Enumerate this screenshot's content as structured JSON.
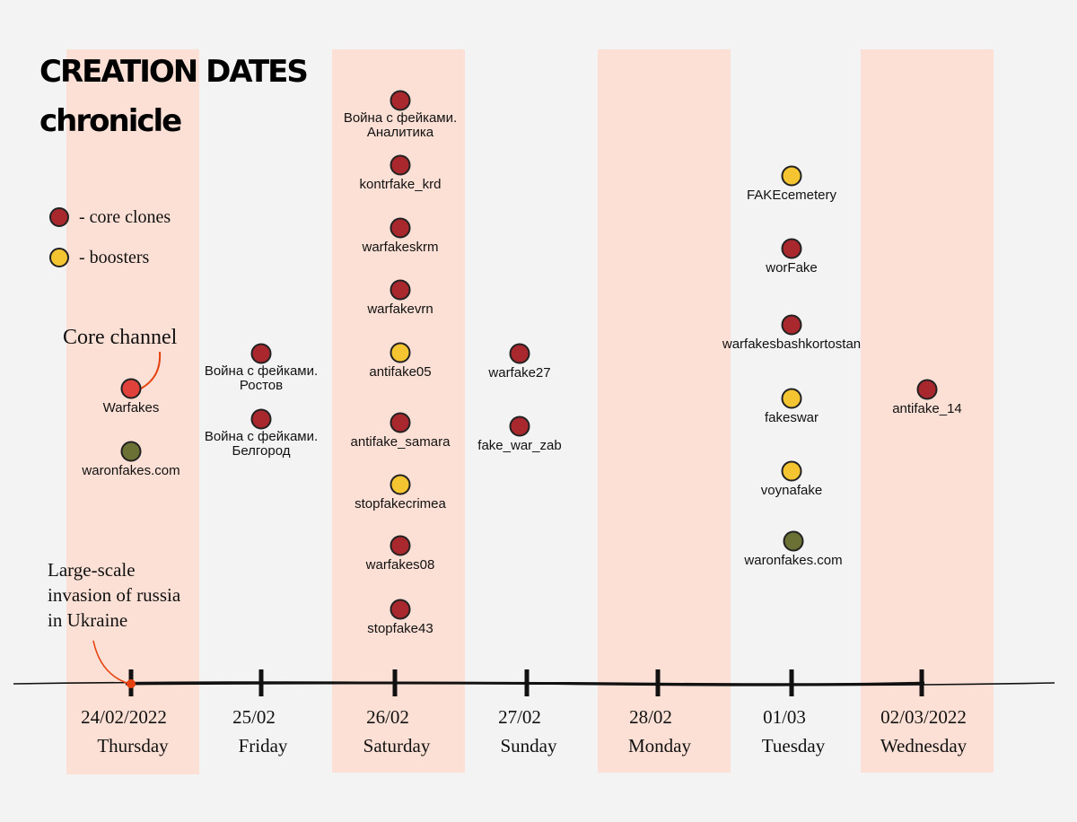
{
  "title": {
    "line1": "CREATION DATES",
    "line2": "chronicle"
  },
  "legend": {
    "core_label": "- core clones",
    "booster_label": "- boosters"
  },
  "colors": {
    "core": "#a8282d",
    "booster": "#f5c431",
    "origin": "#e0413a",
    "waronfakes": "#6b7034",
    "band": "#fde0d5",
    "annotation": "#e5420f"
  },
  "annotations": {
    "core_channel": "Core channel",
    "invasion_line1": "Large-scale",
    "invasion_line2": "invasion of russia",
    "invasion_line3": "in Ukraine"
  },
  "days": [
    {
      "date": "24/02/2022",
      "weekday": "Thursday",
      "highlighted": true
    },
    {
      "date": "25/02",
      "weekday": "Friday",
      "highlighted": false
    },
    {
      "date": "26/02",
      "weekday": "Saturday",
      "highlighted": true
    },
    {
      "date": "27/02",
      "weekday": "Sunday",
      "highlighted": false
    },
    {
      "date": "28/02",
      "weekday": "Monday",
      "highlighted": true
    },
    {
      "date": "01/03",
      "weekday": "Tuesday",
      "highlighted": false
    },
    {
      "date": "02/03/2022",
      "weekday": "Wednesday",
      "highlighted": true
    }
  ],
  "channels": [
    {
      "day": 0,
      "name": [
        "Warfakes"
      ],
      "type": "origin"
    },
    {
      "day": 0,
      "name": [
        "waronfakes.com"
      ],
      "type": "waronfakes"
    },
    {
      "day": 1,
      "name": [
        "Война с фейками.",
        "Ростов"
      ],
      "type": "core"
    },
    {
      "day": 1,
      "name": [
        "Война с фейками.",
        "Белгород"
      ],
      "type": "core"
    },
    {
      "day": 2,
      "name": [
        "Война с фейками.",
        "Аналитика"
      ],
      "type": "core"
    },
    {
      "day": 2,
      "name": [
        "kontrfake_krd"
      ],
      "type": "core"
    },
    {
      "day": 2,
      "name": [
        "warfakeskrm"
      ],
      "type": "core"
    },
    {
      "day": 2,
      "name": [
        "warfakevrn"
      ],
      "type": "core"
    },
    {
      "day": 2,
      "name": [
        "antifake05"
      ],
      "type": "booster"
    },
    {
      "day": 2,
      "name": [
        "antifake_samara"
      ],
      "type": "core"
    },
    {
      "day": 2,
      "name": [
        "stopfakecrimea"
      ],
      "type": "booster"
    },
    {
      "day": 2,
      "name": [
        "warfakes08"
      ],
      "type": "core"
    },
    {
      "day": 2,
      "name": [
        "stopfake43"
      ],
      "type": "core"
    },
    {
      "day": 3,
      "name": [
        "warfake27"
      ],
      "type": "core"
    },
    {
      "day": 3,
      "name": [
        "fake_war_zab"
      ],
      "type": "core"
    },
    {
      "day": 5,
      "name": [
        "FAKEcemetery"
      ],
      "type": "booster"
    },
    {
      "day": 5,
      "name": [
        "worFake"
      ],
      "type": "core"
    },
    {
      "day": 5,
      "name": [
        "warfakesbashkortostan"
      ],
      "type": "core"
    },
    {
      "day": 5,
      "name": [
        "fakeswar"
      ],
      "type": "booster"
    },
    {
      "day": 5,
      "name": [
        "voynafake"
      ],
      "type": "booster"
    },
    {
      "day": 5,
      "name": [
        "waronfakes.com"
      ],
      "type": "waronfakes"
    },
    {
      "day": 6,
      "name": [
        "antifake_14"
      ],
      "type": "core"
    }
  ]
}
